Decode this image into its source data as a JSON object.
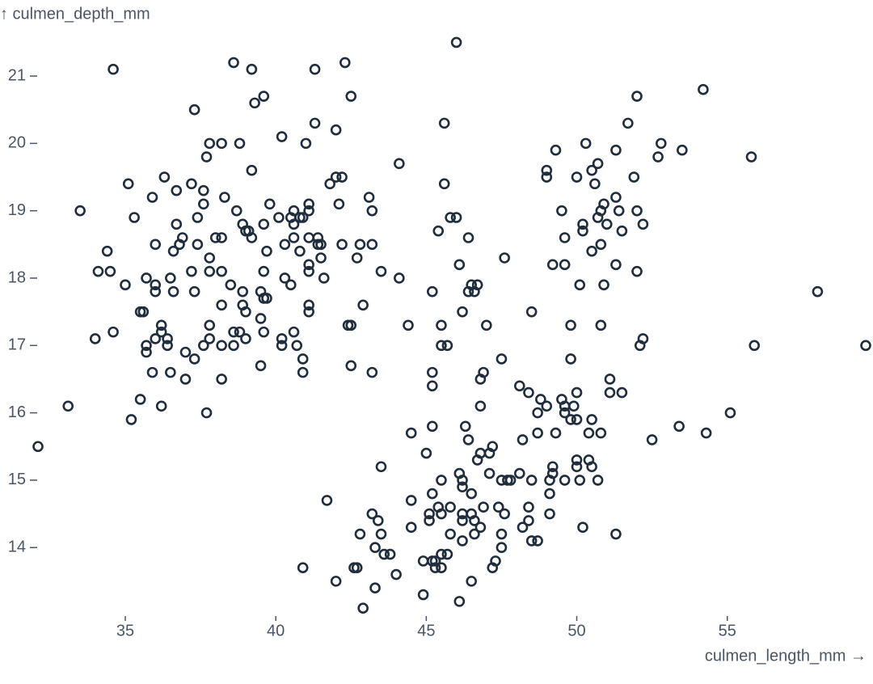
{
  "chart_data": {
    "type": "scatter",
    "x_label": "culmen_length_mm →",
    "y_label": "↑ culmen_depth_mm",
    "color": "#1f2d3d",
    "xlim": [
      32.1,
      59.6
    ],
    "ylim": [
      13.1,
      21.5
    ],
    "xticks": [
      35,
      40,
      45,
      50,
      55
    ],
    "yticks": [
      14,
      15,
      16,
      17,
      18,
      19,
      20,
      21
    ],
    "x": [
      46.0,
      34.6,
      38.6,
      39.2,
      42.3,
      41.3,
      54.2,
      52.0,
      39.6,
      42.5,
      39.3,
      37.3,
      45.6,
      51.7,
      41.3,
      42.0,
      40.2,
      37.8,
      38.2,
      38.8,
      41.0,
      50.3,
      52.8,
      49.3,
      51.3,
      53.5,
      37.7,
      52.7,
      55.8,
      44.1,
      50.7,
      49.0,
      39.2,
      50.5,
      49.0,
      50.0,
      51.9,
      36.3,
      42.0,
      42.2,
      35.1,
      37.2,
      41.8,
      45.6,
      50.6,
      36.7,
      37.6,
      35.9,
      38.3,
      43.1,
      51.3,
      37.6,
      39.8,
      41.1,
      42.1,
      50.9,
      33.5,
      38.7,
      40.6,
      41.1,
      43.2,
      49.5,
      50.8,
      51.4,
      52.0,
      35.3,
      37.4,
      40.1,
      40.5,
      40.8,
      40.9,
      45.8,
      46.0,
      50.7,
      36.7,
      38.9,
      39.6,
      40.6,
      50.2,
      51.0,
      52.2,
      39.0,
      39.1,
      45.4,
      50.2,
      51.5,
      36.9,
      38.0,
      38.2,
      39.2,
      40.6,
      41.1,
      41.4,
      46.4,
      49.6,
      36.0,
      36.8,
      37.4,
      40.3,
      41.4,
      41.5,
      42.2,
      42.8,
      43.2,
      50.8,
      34.4,
      36.6,
      39.7,
      40.8,
      50.5,
      37.8,
      41.5,
      42.7,
      47.6,
      46.1,
      41.1,
      49.2,
      49.6,
      51.3,
      34.1,
      34.5,
      37.2,
      37.8,
      38.2,
      39.6,
      41.1,
      43.5,
      52.0,
      35.7,
      36.5,
      40.3,
      41.6,
      44.1,
      35.0,
      36.0,
      38.5,
      40.5,
      46.5,
      46.7,
      50.1,
      50.9,
      36.0,
      36.6,
      37.3,
      38.9,
      39.5,
      45.2,
      46.4,
      46.6,
      58.0,
      39.6,
      39.7,
      38.2,
      38.9,
      41.1,
      42.9,
      35.5,
      35.6,
      39.0,
      41.1,
      46.2,
      48.5,
      39.5,
      36.2,
      37.8,
      42.4,
      42.5,
      44.4,
      45.5,
      47.0,
      49.8,
      50.8,
      34.6,
      36.2,
      38.6,
      38.8,
      39.6,
      40.6,
      34.0,
      36.0,
      36.4,
      37.8,
      39.0,
      40.2,
      52.2,
      35.7,
      36.4,
      37.6,
      38.2,
      38.6,
      40.2,
      40.7,
      45.5,
      45.7,
      52.1,
      55.9,
      59.6,
      35.7,
      37.0,
      40.9,
      37.3,
      47.5,
      49.8,
      39.5,
      42.5,
      35.9,
      36.5,
      40.9,
      43.2,
      45.2,
      46.9,
      37.0,
      38.2,
      46.8,
      51.1,
      45.2,
      48.1,
      48.4,
      50.0,
      51.1,
      51.5,
      35.5,
      48.8,
      49.5,
      33.1,
      36.2,
      46.8,
      49.0,
      49.6,
      49.9,
      48.7,
      49.6,
      37.7,
      55.1,
      35.2,
      49.8,
      50.0,
      50.5,
      45.2,
      46.3,
      53.4,
      44.5,
      48.7,
      49.3,
      50.4,
      50.8,
      54.3,
      46.4,
      48.2,
      52.5,
      32.1,
      47.2,
      45.0,
      46.8,
      47.1,
      46.7,
      50.0,
      50.4,
      43.5,
      49.2,
      50.0,
      50.5,
      46.1,
      47.1,
      48.1,
      49.2,
      45.5,
      46.2,
      47.5,
      47.7,
      47.8,
      48.5,
      49.1,
      49.6,
      50.1,
      50.7,
      46.2,
      45.2,
      46.5,
      49.1,
      41.7,
      44.5,
      45.4,
      45.8,
      46.9,
      47.4,
      48.4,
      45.1,
      45.5,
      46.2,
      46.5,
      47.6,
      49.1,
      43.2,
      43.4,
      45.1,
      46.2,
      46.6,
      48.4,
      44.5,
      46.8,
      48.2,
      50.2,
      42.8,
      43.5,
      45.8,
      46.6,
      47.5,
      51.3,
      46.2,
      48.5,
      48.7,
      43.3,
      47.5,
      43.6,
      43.8,
      45.5,
      45.7,
      44.9,
      45.2,
      45.3,
      47.3,
      40.9,
      42.6,
      42.7,
      45.3,
      45.5,
      47.2,
      44.0,
      42.0,
      46.5,
      43.3,
      44.9,
      46.1,
      42.9
    ],
    "y": [
      21.5,
      21.1,
      21.2,
      21.1,
      21.2,
      21.1,
      20.8,
      20.7,
      20.7,
      20.7,
      20.6,
      20.5,
      20.3,
      20.3,
      20.3,
      20.2,
      20.1,
      20.0,
      20.0,
      20.0,
      20.0,
      20.0,
      20.0,
      19.9,
      19.9,
      19.9,
      19.8,
      19.8,
      19.8,
      19.7,
      19.7,
      19.6,
      19.6,
      19.6,
      19.5,
      19.5,
      19.5,
      19.5,
      19.5,
      19.5,
      19.4,
      19.4,
      19.4,
      19.4,
      19.4,
      19.3,
      19.3,
      19.2,
      19.2,
      19.2,
      19.2,
      19.1,
      19.1,
      19.1,
      19.1,
      19.1,
      19.0,
      19.0,
      19.0,
      19.0,
      19.0,
      19.0,
      19.0,
      19.0,
      19.0,
      18.9,
      18.9,
      18.9,
      18.9,
      18.9,
      18.9,
      18.9,
      18.9,
      18.9,
      18.8,
      18.8,
      18.8,
      18.8,
      18.8,
      18.8,
      18.8,
      18.7,
      18.7,
      18.7,
      18.7,
      18.7,
      18.6,
      18.6,
      18.6,
      18.6,
      18.6,
      18.6,
      18.6,
      18.6,
      18.6,
      18.5,
      18.5,
      18.5,
      18.5,
      18.5,
      18.5,
      18.5,
      18.5,
      18.5,
      18.5,
      18.4,
      18.4,
      18.4,
      18.4,
      18.4,
      18.3,
      18.3,
      18.3,
      18.3,
      18.2,
      18.2,
      18.2,
      18.2,
      18.2,
      18.1,
      18.1,
      18.1,
      18.1,
      18.1,
      18.1,
      18.1,
      18.1,
      18.1,
      18.0,
      18.0,
      18.0,
      18.0,
      18.0,
      17.9,
      17.9,
      17.9,
      17.9,
      17.9,
      17.9,
      17.9,
      17.9,
      17.8,
      17.8,
      17.8,
      17.8,
      17.8,
      17.8,
      17.8,
      17.8,
      17.8,
      17.7,
      17.7,
      17.6,
      17.6,
      17.6,
      17.6,
      17.5,
      17.5,
      17.5,
      17.5,
      17.5,
      17.5,
      17.4,
      17.3,
      17.3,
      17.3,
      17.3,
      17.3,
      17.3,
      17.3,
      17.3,
      17.3,
      17.2,
      17.2,
      17.2,
      17.2,
      17.2,
      17.2,
      17.1,
      17.1,
      17.1,
      17.1,
      17.1,
      17.1,
      17.1,
      17.0,
      17.0,
      17.0,
      17.0,
      17.0,
      17.0,
      17.0,
      17.0,
      17.0,
      17.0,
      17.0,
      17.0,
      16.9,
      16.9,
      16.8,
      16.8,
      16.8,
      16.8,
      16.7,
      16.7,
      16.6,
      16.6,
      16.6,
      16.6,
      16.6,
      16.6,
      16.5,
      16.5,
      16.5,
      16.5,
      16.4,
      16.4,
      16.3,
      16.3,
      16.3,
      16.3,
      16.2,
      16.2,
      16.2,
      16.1,
      16.1,
      16.1,
      16.1,
      16.1,
      16.1,
      16.0,
      16.0,
      16.0,
      16.0,
      15.9,
      15.9,
      15.9,
      15.9,
      15.8,
      15.8,
      15.8,
      15.7,
      15.7,
      15.7,
      15.7,
      15.7,
      15.7,
      15.6,
      15.6,
      15.6,
      15.5,
      15.5,
      15.4,
      15.4,
      15.4,
      15.3,
      15.3,
      15.3,
      15.2,
      15.2,
      15.2,
      15.2,
      15.1,
      15.1,
      15.1,
      15.1,
      15.0,
      15.0,
      15.0,
      15.0,
      15.0,
      15.0,
      15.0,
      15.0,
      15.0,
      15.0,
      14.9,
      14.8,
      14.8,
      14.8,
      14.7,
      14.7,
      14.6,
      14.6,
      14.6,
      14.6,
      14.6,
      14.5,
      14.5,
      14.5,
      14.5,
      14.5,
      14.5,
      14.5,
      14.4,
      14.4,
      14.4,
      14.4,
      14.4,
      14.3,
      14.3,
      14.3,
      14.3,
      14.2,
      14.2,
      14.2,
      14.2,
      14.2,
      14.2,
      14.1,
      14.1,
      14.1,
      14.0,
      14.0,
      13.9,
      13.9,
      13.9,
      13.9,
      13.8,
      13.8,
      13.8,
      13.8,
      13.7,
      13.7,
      13.7,
      13.7,
      13.7,
      13.7,
      13.6,
      13.5,
      13.5,
      13.4,
      13.3,
      13.2,
      13.1
    ]
  }
}
